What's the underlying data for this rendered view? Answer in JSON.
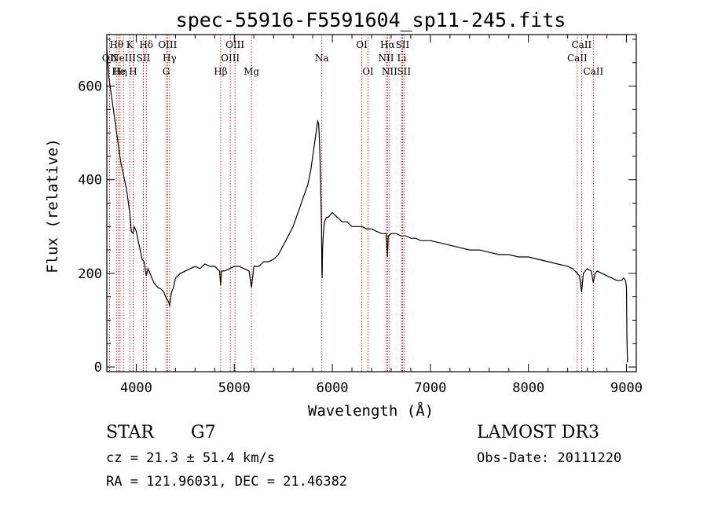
{
  "chart_data": {
    "type": "line",
    "title": "spec-55916-F5591604_sp11-245.fits",
    "xlabel": "Wavelength (Å)",
    "ylabel": "Flux (relative)",
    "xlim": [
      3700,
      9100
    ],
    "ylim": [
      -10,
      710
    ],
    "xticks": [
      4000,
      5000,
      6000,
      7000,
      8000,
      9000
    ],
    "yticks": [
      0,
      200,
      400,
      600
    ],
    "series": [
      {
        "name": "flux",
        "x": [
          3700,
          3710,
          3720,
          3740,
          3760,
          3780,
          3800,
          3820,
          3840,
          3860,
          3880,
          3900,
          3920,
          3933,
          3950,
          3968,
          3980,
          4000,
          4020,
          4040,
          4060,
          4080,
          4102,
          4120,
          4140,
          4160,
          4180,
          4200,
          4220,
          4240,
          4260,
          4280,
          4300,
          4310,
          4330,
          4340,
          4360,
          4380,
          4400,
          4450,
          4500,
          4550,
          4600,
          4650,
          4700,
          4750,
          4800,
          4850,
          4861,
          4870,
          4900,
          4950,
          5000,
          5050,
          5100,
          5150,
          5175,
          5200,
          5250,
          5300,
          5350,
          5400,
          5450,
          5500,
          5550,
          5600,
          5650,
          5700,
          5750,
          5780,
          5800,
          5820,
          5840,
          5850,
          5860,
          5870,
          5880,
          5890,
          5893,
          5896,
          5900,
          5910,
          5920,
          5940,
          5960,
          5980,
          6000,
          6050,
          6100,
          6150,
          6200,
          6250,
          6300,
          6350,
          6400,
          6450,
          6500,
          6550,
          6563,
          6570,
          6600,
          6650,
          6700,
          6750,
          6800,
          6850,
          6900,
          6950,
          7000,
          7100,
          7200,
          7300,
          7400,
          7500,
          7600,
          7700,
          7800,
          7900,
          8000,
          8100,
          8200,
          8300,
          8400,
          8450,
          8500,
          8520,
          8542,
          8560,
          8600,
          8640,
          8662,
          8680,
          8700,
          8750,
          8800,
          8850,
          8900,
          8950,
          8970,
          8990,
          9000,
          9005,
          9010
        ],
        "values": [
          680,
          650,
          620,
          590,
          560,
          530,
          500,
          470,
          440,
          420,
          400,
          380,
          350,
          330,
          290,
          285,
          300,
          290,
          270,
          250,
          230,
          225,
          195,
          210,
          200,
          190,
          180,
          175,
          170,
          168,
          165,
          160,
          150,
          145,
          140,
          130,
          160,
          170,
          190,
          200,
          205,
          210,
          215,
          210,
          220,
          215,
          215,
          205,
          175,
          205,
          205,
          210,
          215,
          215,
          210,
          205,
          170,
          215,
          215,
          225,
          225,
          230,
          240,
          260,
          280,
          300,
          330,
          360,
          390,
          420,
          450,
          480,
          510,
          525,
          520,
          480,
          400,
          300,
          210,
          190,
          250,
          290,
          310,
          320,
          320,
          325,
          330,
          320,
          310,
          310,
          300,
          300,
          300,
          295,
          295,
          290,
          285,
          285,
          235,
          280,
          285,
          285,
          280,
          280,
          275,
          275,
          270,
          270,
          270,
          265,
          260,
          255,
          250,
          250,
          245,
          240,
          240,
          235,
          235,
          230,
          225,
          220,
          215,
          210,
          200,
          195,
          160,
          200,
          210,
          205,
          180,
          200,
          205,
          200,
          195,
          190,
          185,
          185,
          190,
          185,
          170,
          60,
          10
        ],
        "color": "#000000"
      }
    ],
    "line_markers": [
      {
        "label": "OII",
        "x": 3727,
        "row": 2
      },
      {
        "label": "Hθ",
        "x": 3798,
        "row": 1
      },
      {
        "label": "He",
        "x": 3820,
        "row": 3
      },
      {
        "label": "Hη",
        "x": 3835,
        "row": 3
      },
      {
        "label": "NeIII",
        "x": 3869,
        "row": 2
      },
      {
        "label": "K",
        "x": 3934,
        "row": 1
      },
      {
        "label": "H",
        "x": 3968,
        "row": 3
      },
      {
        "label": "SII",
        "x": 4072,
        "row": 2
      },
      {
        "label": "Hδ",
        "x": 4102,
        "row": 1
      },
      {
        "label": "OIII",
        "x": 4320,
        "row": 1
      },
      {
        "label": "Hγ",
        "x": 4340,
        "row": 2
      },
      {
        "label": "G",
        "x": 4305,
        "row": 3
      },
      {
        "label": "Hβ",
        "x": 4861,
        "row": 3
      },
      {
        "label": "OIII",
        "x": 4959,
        "row": 2
      },
      {
        "label": "OIII",
        "x": 5007,
        "row": 1
      },
      {
        "label": "Mg",
        "x": 5175,
        "row": 3
      },
      {
        "label": "Na",
        "x": 5893,
        "row": 2
      },
      {
        "label": "OI",
        "x": 6300,
        "row": 1
      },
      {
        "label": "OI",
        "x": 6364,
        "row": 3
      },
      {
        "label": "NII",
        "x": 6548,
        "row": 2
      },
      {
        "label": "Hα",
        "x": 6563,
        "row": 1
      },
      {
        "label": "NII",
        "x": 6583,
        "row": 3
      },
      {
        "label": "Li",
        "x": 6708,
        "row": 2
      },
      {
        "label": "SII",
        "x": 6716,
        "row": 1
      },
      {
        "label": "SII",
        "x": 6731,
        "row": 3
      },
      {
        "label": "CaII",
        "x": 8498,
        "row": 2
      },
      {
        "label": "CaII",
        "x": 8542,
        "row": 1
      },
      {
        "label": "CaII",
        "x": 8662,
        "row": 3
      }
    ]
  },
  "info": {
    "class": "STAR",
    "subclass": "G7",
    "survey": "LAMOST DR3",
    "cz": "cz = 21.3 ± 51.4 km/s",
    "obs_date": "Obs-Date: 20111220",
    "coords": "RA = 121.96031, DEC =  21.46382"
  }
}
